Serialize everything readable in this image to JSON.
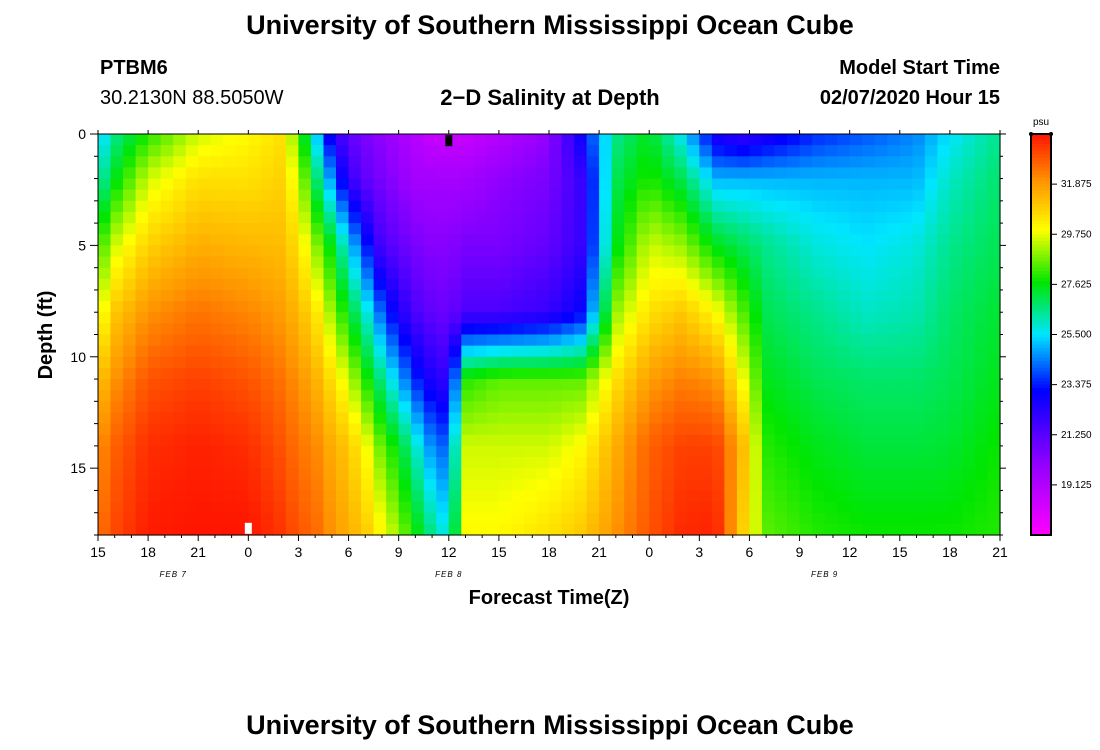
{
  "header": {
    "top_title": "University of Southern Mississippi Ocean Cube",
    "station_id": "PTBM6",
    "coordinates": "30.2130N 88.5050W",
    "plot_title": "2−D Salinity at Depth",
    "model_start_label": "Model Start Time",
    "model_start_value": "02/07/2020 Hour 15"
  },
  "footer": {
    "bottom_title": "University of Southern Mississippi Ocean Cube"
  },
  "chart_data": {
    "type": "heatmap",
    "title": "2−D Salinity at Depth",
    "xlabel": "Forecast Time(Z)",
    "ylabel": "Depth (ft)",
    "colorbar_unit": "psu",
    "x_range_hours": [
      0,
      54
    ],
    "ylim": [
      18,
      0
    ],
    "x_tick_labels": [
      "15",
      "18",
      "21",
      "0",
      "3",
      "6",
      "9",
      "12",
      "15",
      "18",
      "21",
      "0",
      "3",
      "6",
      "9",
      "12",
      "15",
      "18",
      "21"
    ],
    "y_ticks": [
      0,
      5,
      10,
      15
    ],
    "date_labels": [
      {
        "text": "FEB 7",
        "hour": 4.5
      },
      {
        "text": "FEB 8",
        "hour": 21
      },
      {
        "text": "FEB 9",
        "hour": 43.5
      }
    ],
    "markers": [
      {
        "type": "current-time",
        "hour": 21,
        "depth": 0.3,
        "color": "#000000"
      },
      {
        "type": "day-start",
        "hour": 9,
        "depth": 17.7,
        "color": "#ffffff"
      }
    ],
    "colorbar": {
      "min": 17,
      "max": 34,
      "tick_values": [
        19.125,
        21.25,
        23.375,
        25.5,
        27.625,
        29.75,
        31.875
      ],
      "tick_labels": [
        "19.125",
        "21.250",
        "23.375",
        "25.500",
        "27.625",
        "29.750",
        "31.875"
      ]
    },
    "salinity_columns": [
      {
        "hour": 0,
        "depths": [
          0,
          2,
          5,
          8,
          11,
          14,
          18
        ],
        "values": [
          25.0,
          26.0,
          28.0,
          29.5,
          31.0,
          32.0,
          32.5
        ]
      },
      {
        "hour": 1,
        "depths": [
          0,
          2,
          5,
          8,
          11,
          14,
          18
        ],
        "values": [
          26.5,
          27.5,
          29.5,
          31.0,
          32.0,
          32.8,
          33.2
        ]
      },
      {
        "hour": 3,
        "depths": [
          0,
          2,
          5,
          8,
          11,
          14,
          18
        ],
        "values": [
          28.0,
          29.5,
          30.8,
          32.0,
          33.0,
          33.6,
          33.9
        ]
      },
      {
        "hour": 6,
        "depths": [
          0,
          2,
          5,
          8,
          11,
          14,
          18
        ],
        "values": [
          29.5,
          30.5,
          31.5,
          32.5,
          33.3,
          33.8,
          34.0
        ]
      },
      {
        "hour": 9,
        "depths": [
          0,
          2,
          5,
          8,
          11,
          14,
          18
        ],
        "values": [
          30.0,
          30.5,
          31.3,
          32.2,
          33.0,
          33.6,
          34.0
        ]
      },
      {
        "hour": 11,
        "depths": [
          0,
          2,
          5,
          8,
          11,
          14,
          18
        ],
        "values": [
          30.5,
          30.8,
          31.2,
          31.8,
          32.5,
          33.0,
          33.5
        ]
      },
      {
        "hour": 12,
        "depths": [
          0,
          2,
          5,
          8,
          11,
          14,
          18
        ],
        "values": [
          28.5,
          29.5,
          30.5,
          31.3,
          32.0,
          32.5,
          33.0
        ]
      },
      {
        "hour": 13,
        "depths": [
          0,
          2,
          5,
          8,
          11,
          14,
          18
        ],
        "values": [
          25.5,
          27.0,
          29.0,
          30.5,
          31.5,
          32.2,
          32.7
        ]
      },
      {
        "hour": 14,
        "depths": [
          0,
          2,
          5,
          8,
          11,
          14,
          18
        ],
        "values": [
          22.5,
          24.5,
          27.5,
          29.0,
          30.5,
          31.5,
          32.0
        ]
      },
      {
        "hour": 15,
        "depths": [
          0,
          2,
          5,
          8,
          11,
          14,
          18
        ],
        "values": [
          21.0,
          22.0,
          25.5,
          27.5,
          29.5,
          31.0,
          31.5
        ]
      },
      {
        "hour": 16,
        "depths": [
          0,
          2,
          5,
          8,
          11,
          14,
          18
        ],
        "values": [
          20.5,
          21.0,
          23.5,
          26.0,
          28.0,
          30.0,
          31.0
        ]
      },
      {
        "hour": 17,
        "depths": [
          0,
          2,
          5,
          8,
          11,
          14,
          18
        ],
        "values": [
          20.0,
          20.5,
          21.5,
          24.0,
          26.5,
          28.5,
          30.0
        ]
      },
      {
        "hour": 18,
        "depths": [
          0,
          2,
          5,
          8,
          11,
          14,
          18
        ],
        "values": [
          19.5,
          20.0,
          21.0,
          22.5,
          25.0,
          27.5,
          29.0
        ]
      },
      {
        "hour": 19,
        "depths": [
          0,
          2,
          5,
          8,
          11,
          14,
          18
        ],
        "values": [
          19.0,
          19.5,
          20.5,
          21.5,
          23.5,
          26.0,
          27.8
        ]
      },
      {
        "hour": 20,
        "depths": [
          0,
          2,
          5,
          8,
          11,
          14,
          18
        ],
        "values": [
          18.5,
          19.5,
          20.2,
          21.0,
          22.5,
          24.5,
          26.5
        ]
      },
      {
        "hour": 21,
        "depths": [
          0,
          2,
          5,
          8,
          11,
          14,
          18
        ],
        "values": [
          18.5,
          19.5,
          20.2,
          20.8,
          22.0,
          24.0,
          25.5
        ]
      },
      {
        "hour": 22,
        "depths": [
          0,
          2,
          5,
          8,
          11,
          14,
          18
        ],
        "values": [
          18.5,
          19.5,
          20.5,
          21.5,
          28.0,
          29.5,
          30.0
        ]
      },
      {
        "hour": 24,
        "depths": [
          0,
          2,
          5,
          8,
          11,
          14,
          18
        ],
        "values": [
          19.0,
          20.0,
          20.5,
          21.5,
          28.5,
          29.5,
          30.0
        ]
      },
      {
        "hour": 27,
        "depths": [
          0,
          2,
          5,
          8,
          11,
          14,
          18
        ],
        "values": [
          20.0,
          20.5,
          21.0,
          22.0,
          28.5,
          29.5,
          30.5
        ]
      },
      {
        "hour": 29,
        "depths": [
          0,
          2,
          5,
          8,
          11,
          14,
          18
        ],
        "values": [
          23.0,
          22.0,
          22.0,
          23.0,
          28.5,
          30.0,
          31.0
        ]
      },
      {
        "hour": 31,
        "depths": [
          0,
          2,
          5,
          8,
          11,
          14,
          18
        ],
        "values": [
          26.5,
          27.0,
          27.5,
          29.0,
          30.5,
          31.5,
          32.0
        ]
      },
      {
        "hour": 33,
        "depths": [
          0,
          2,
          5,
          8,
          11,
          14,
          18
        ],
        "values": [
          27.5,
          28.0,
          29.5,
          30.5,
          31.8,
          32.8,
          33.0
        ]
      },
      {
        "hour": 35,
        "depths": [
          0,
          2,
          5,
          8,
          11,
          14,
          18
        ],
        "values": [
          25.5,
          27.0,
          29.0,
          31.0,
          32.3,
          33.3,
          33.7
        ]
      },
      {
        "hour": 37,
        "depths": [
          0,
          2,
          5,
          8,
          11,
          14,
          18
        ],
        "values": [
          22.5,
          25.0,
          27.5,
          30.0,
          32.0,
          33.3,
          33.8
        ]
      },
      {
        "hour": 38.5,
        "depths": [
          0,
          2,
          5,
          8,
          11,
          14,
          18
        ],
        "values": [
          22.0,
          25.0,
          27.0,
          28.5,
          30.0,
          31.5,
          31.0
        ]
      },
      {
        "hour": 40,
        "depths": [
          0,
          2,
          5,
          8,
          11,
          14,
          18
        ],
        "values": [
          22.5,
          25.0,
          26.5,
          27.0,
          27.5,
          28.0,
          28.5
        ]
      },
      {
        "hour": 43,
        "depths": [
          0,
          2,
          5,
          8,
          11,
          14,
          18
        ],
        "values": [
          23.5,
          25.0,
          25.8,
          26.5,
          27.0,
          27.5,
          28.0
        ]
      },
      {
        "hour": 46,
        "depths": [
          0,
          2,
          5,
          8,
          11,
          14,
          18
        ],
        "values": [
          24.0,
          25.0,
          25.5,
          26.0,
          26.8,
          27.2,
          27.8
        ]
      },
      {
        "hour": 49,
        "depths": [
          0,
          2,
          5,
          8,
          11,
          14,
          18
        ],
        "values": [
          24.5,
          25.0,
          25.8,
          26.2,
          26.8,
          27.2,
          27.8
        ]
      },
      {
        "hour": 51,
        "depths": [
          0,
          2,
          5,
          8,
          11,
          14,
          18
        ],
        "values": [
          25.5,
          26.0,
          26.5,
          26.8,
          27.0,
          27.3,
          27.8
        ]
      },
      {
        "hour": 54,
        "depths": [
          0,
          2,
          5,
          8,
          11,
          14,
          18
        ],
        "values": [
          26.5,
          26.8,
          27.0,
          27.3,
          27.5,
          27.8,
          28.0
        ]
      }
    ]
  }
}
